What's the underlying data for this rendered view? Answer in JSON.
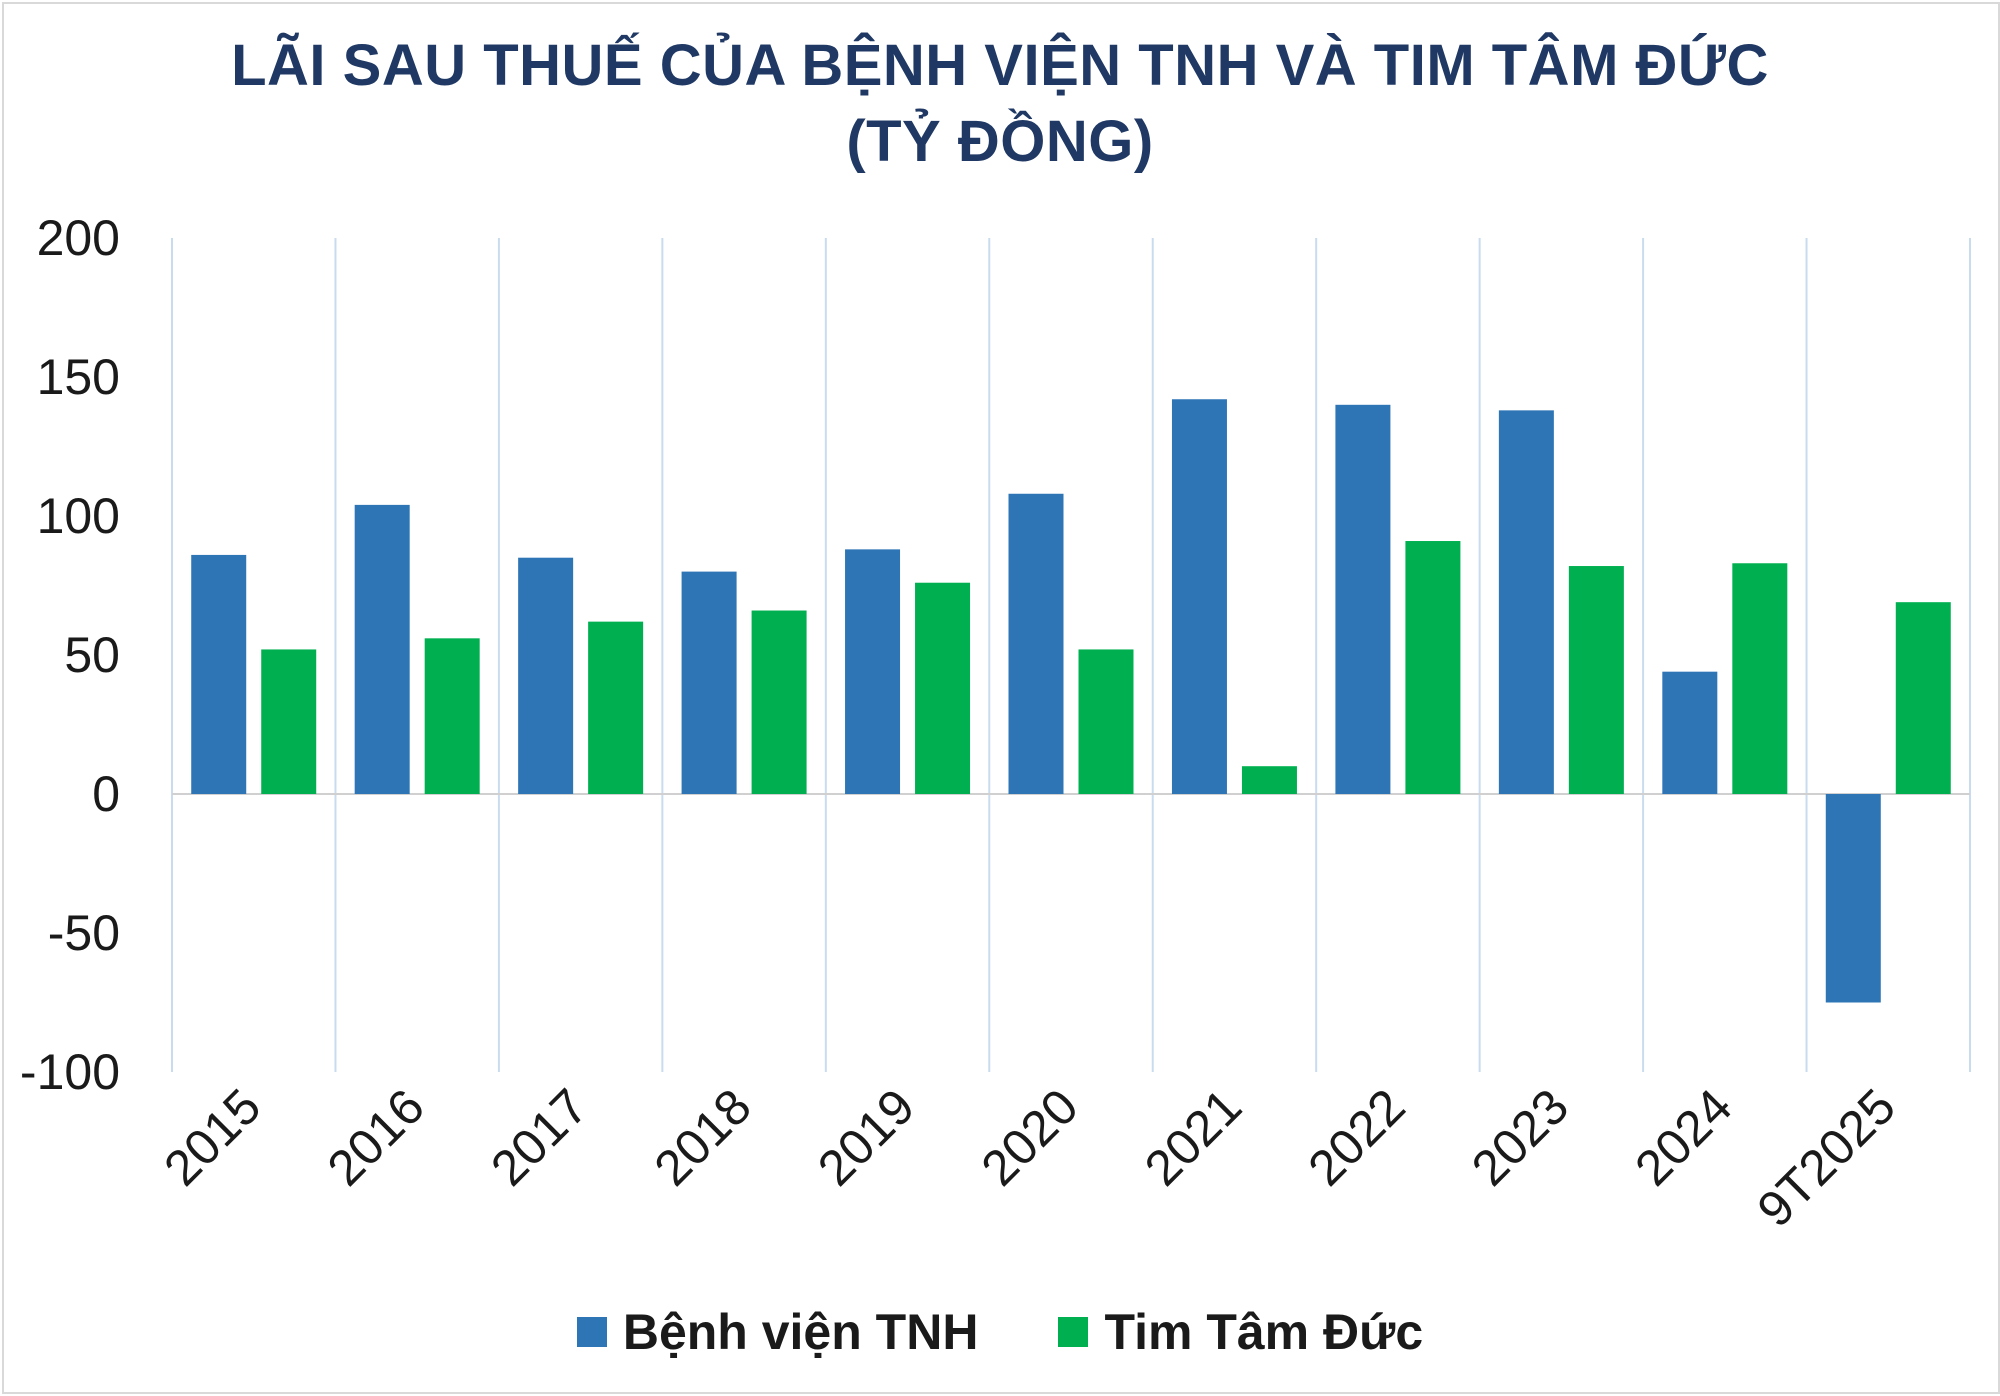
{
  "chart_data": {
    "type": "bar",
    "title_line1": "LÃI SAU THUẾ CỦA BỆNH VIỆN TNH VÀ TIM TÂM ĐỨC",
    "title_line2": "(TỶ ĐỒNG)",
    "categories": [
      "2015",
      "2016",
      "2017",
      "2018",
      "2019",
      "2020",
      "2021",
      "2022",
      "2023",
      "2024",
      "9T2025"
    ],
    "series": [
      {
        "name": "Bệnh viện TNH",
        "color": "#2e75b6",
        "values": [
          86,
          104,
          85,
          80,
          88,
          108,
          142,
          140,
          138,
          44,
          -75
        ]
      },
      {
        "name": "Tim Tâm Đức",
        "color": "#00b050",
        "values": [
          52,
          56,
          62,
          66,
          76,
          52,
          10,
          91,
          82,
          83,
          69
        ]
      }
    ],
    "y_ticks": [
      "200",
      "150",
      "100",
      "50",
      "0",
      "-50",
      "-100"
    ],
    "ylim": [
      -100,
      200
    ],
    "grid": "vertical",
    "legend_position": "bottom"
  }
}
